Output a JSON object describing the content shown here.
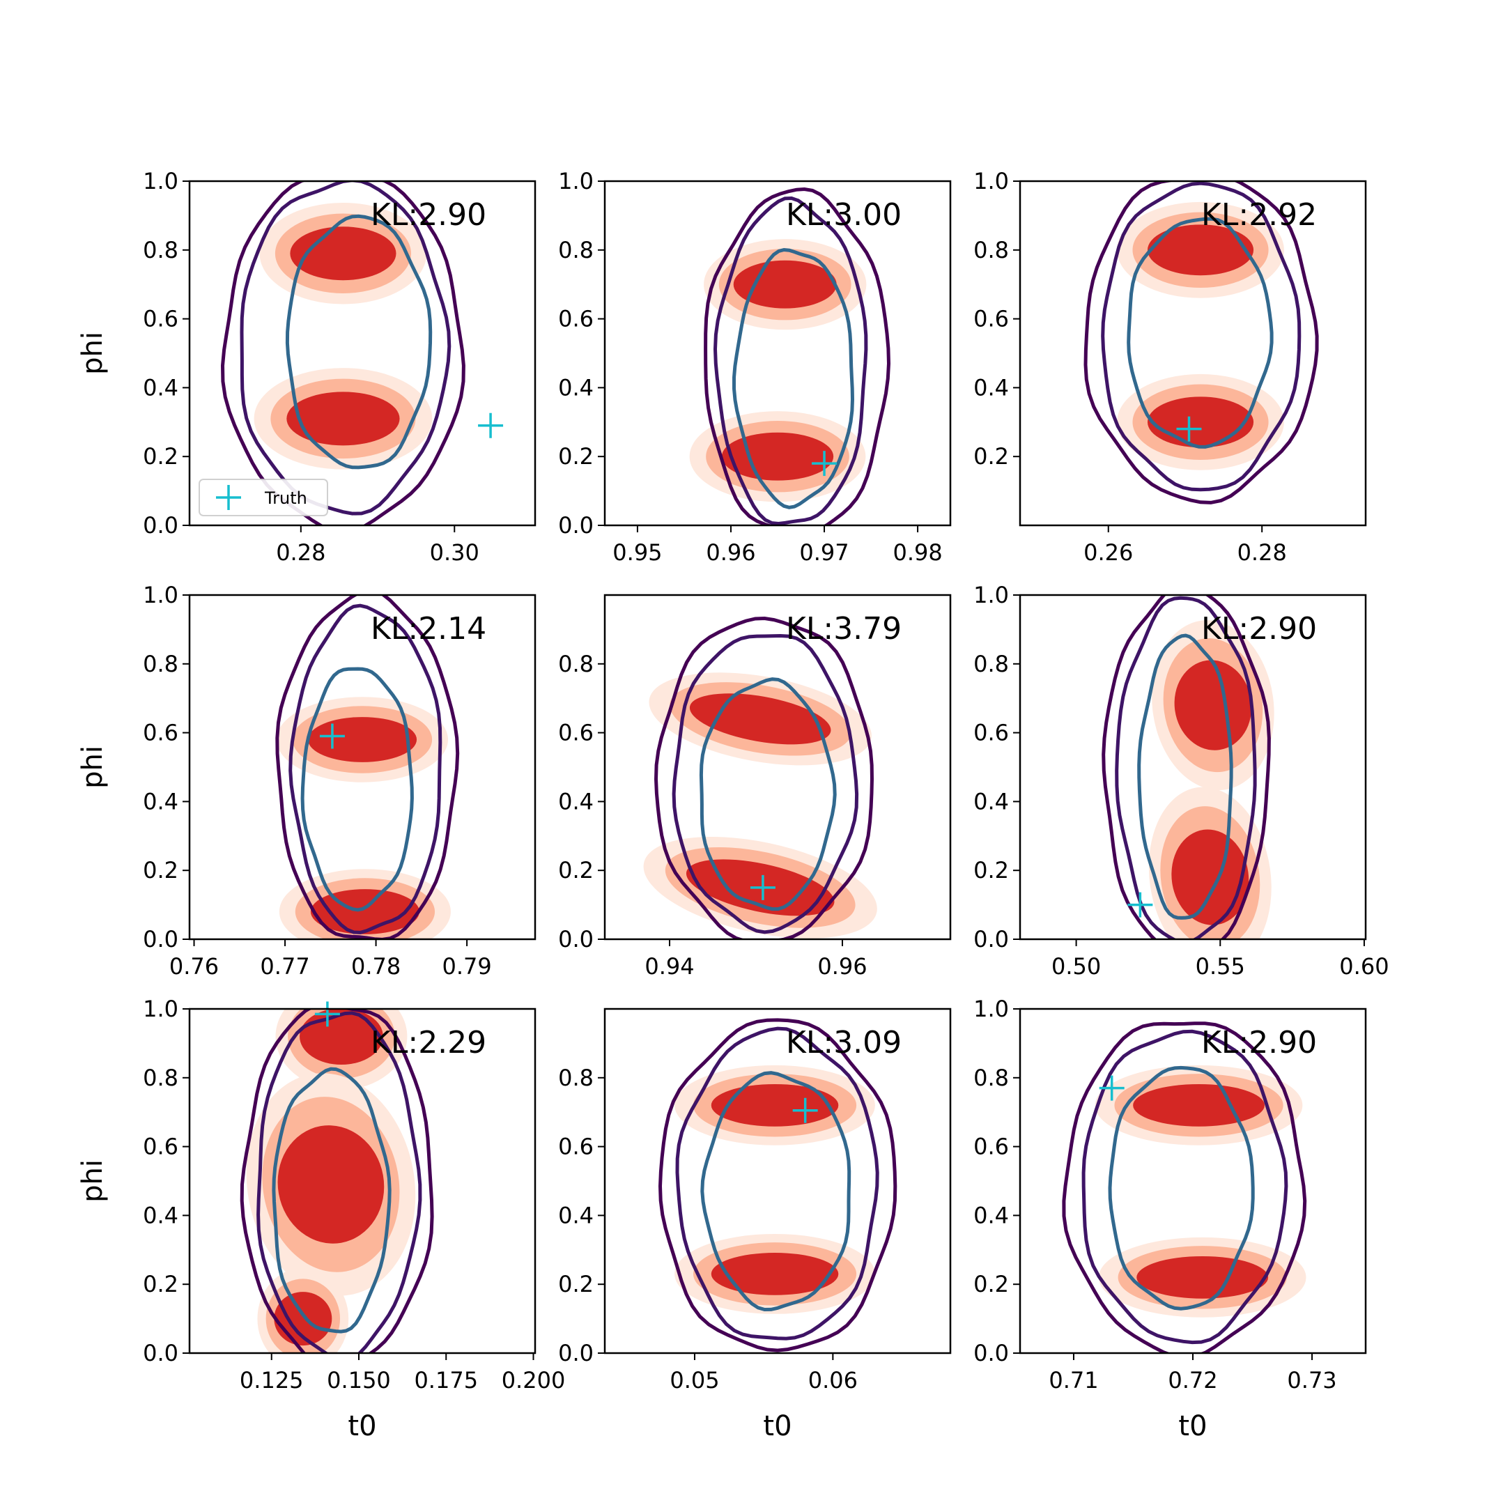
{
  "figure": {
    "legend": {
      "label": "Truth",
      "marker_color": "#17becf",
      "placement": "lower-left of first panel"
    },
    "colors": {
      "fill_outer": "#fee8dd",
      "fill_mid": "#fcb69a",
      "fill_inner": "#d42724",
      "contour_outer": "#440154",
      "contour_mid": "#3e1466",
      "contour_inner": "#31688e",
      "truth": "#17becf"
    }
  },
  "chart_data": [
    {
      "type": "contour",
      "kl_label": "KL:2.90",
      "xlabel": "",
      "ylabel": "phi",
      "xticks": [
        0.28,
        0.3
      ],
      "xtick_labels": [
        "0.28",
        "0.30"
      ],
      "xlim": [
        0.2655,
        0.3105
      ],
      "yticks": [
        0.0,
        0.2,
        0.4,
        0.6,
        0.8,
        1.0
      ],
      "ytick_labels": [
        "0.0",
        "0.2",
        "0.4",
        "0.6",
        "0.8",
        "1.0"
      ],
      "ylim": [
        0.0,
        1.0
      ],
      "truth": [
        0.3047,
        0.29
      ],
      "blobs": [
        {
          "cx": 0.2855,
          "cy": 0.79,
          "rx": 0.0075,
          "ry": 0.095
        },
        {
          "cx": 0.2855,
          "cy": 0.31,
          "rx": 0.008,
          "ry": 0.095
        }
      ],
      "contours": [
        {
          "cx": 0.2855,
          "cy": 0.51,
          "rx": 0.0155,
          "ry": 0.515,
          "level": "outer"
        },
        {
          "cx": 0.2855,
          "cy": 0.52,
          "rx": 0.0135,
          "ry": 0.48,
          "level": "mid"
        },
        {
          "cx": 0.2875,
          "cy": 0.53,
          "rx": 0.0093,
          "ry": 0.365,
          "level": "inner"
        }
      ],
      "show_legend": true
    },
    {
      "type": "contour",
      "kl_label": "KL:3.00",
      "xlabel": "",
      "ylabel": "",
      "xticks": [
        0.95,
        0.96,
        0.97,
        0.98
      ],
      "xtick_labels": [
        "0.95",
        "0.96",
        "0.97",
        "0.98"
      ],
      "xlim": [
        0.9465,
        0.9835
      ],
      "yticks": [
        0.0,
        0.2,
        0.4,
        0.6,
        0.8,
        1.0
      ],
      "ytick_labels": [
        "0.0",
        "0.2",
        "0.4",
        "0.6",
        "0.8",
        "1.0"
      ],
      "ylim": [
        0.0,
        1.0
      ],
      "truth": [
        0.97,
        0.18
      ],
      "blobs": [
        {
          "cx": 0.9658,
          "cy": 0.7,
          "rx": 0.006,
          "ry": 0.085
        },
        {
          "cx": 0.965,
          "cy": 0.2,
          "rx": 0.0065,
          "ry": 0.085
        }
      ],
      "contours": [
        {
          "cx": 0.967,
          "cy": 0.47,
          "rx": 0.0098,
          "ry": 0.5,
          "level": "outer"
        },
        {
          "cx": 0.9665,
          "cy": 0.47,
          "rx": 0.008,
          "ry": 0.47,
          "level": "mid"
        },
        {
          "cx": 0.9668,
          "cy": 0.43,
          "rx": 0.0063,
          "ry": 0.37,
          "level": "inner"
        }
      ],
      "show_legend": false
    },
    {
      "type": "contour",
      "kl_label": "KL:2.92",
      "xlabel": "",
      "ylabel": "",
      "xticks": [
        0.26,
        0.28
      ],
      "xtick_labels": [
        "0.26",
        "0.28"
      ],
      "xlim": [
        0.2485,
        0.2935
      ],
      "yticks": [
        0.2,
        0.4,
        0.6,
        0.8,
        1.0
      ],
      "ytick_labels": [
        "0.2",
        "0.4",
        "0.6",
        "0.8",
        "1.0"
      ],
      "ylim": [
        0.0,
        1.0
      ],
      "truth": [
        0.2705,
        0.28
      ],
      "blobs": [
        {
          "cx": 0.272,
          "cy": 0.8,
          "rx": 0.0075,
          "ry": 0.09
        },
        {
          "cx": 0.272,
          "cy": 0.3,
          "rx": 0.0075,
          "ry": 0.09
        }
      ],
      "contours": [
        {
          "cx": 0.272,
          "cy": 0.55,
          "rx": 0.015,
          "ry": 0.475,
          "level": "outer"
        },
        {
          "cx": 0.272,
          "cy": 0.55,
          "rx": 0.0128,
          "ry": 0.445,
          "level": "mid"
        },
        {
          "cx": 0.2718,
          "cy": 0.56,
          "rx": 0.0093,
          "ry": 0.33,
          "level": "inner"
        }
      ],
      "show_legend": false
    },
    {
      "type": "contour",
      "kl_label": "KL:2.14",
      "xlabel": "",
      "ylabel": "phi",
      "xticks": [
        0.76,
        0.77,
        0.78,
        0.79
      ],
      "xtick_labels": [
        "0.76",
        "0.77",
        "0.78",
        "0.79"
      ],
      "xlim": [
        0.7595,
        0.7975
      ],
      "yticks": [
        0.0,
        0.2,
        0.4,
        0.6,
        0.8,
        1.0
      ],
      "ytick_labels": [
        "0.0",
        "0.2",
        "0.4",
        "0.6",
        "0.8",
        "1.0"
      ],
      "ylim": [
        0.0,
        1.0
      ],
      "truth": [
        0.7752,
        0.59
      ],
      "blobs": [
        {
          "cx": 0.7785,
          "cy": 0.58,
          "rx": 0.0065,
          "ry": 0.08
        },
        {
          "cx": 0.7788,
          "cy": 0.08,
          "rx": 0.0065,
          "ry": 0.08
        }
      ],
      "contours": [
        {
          "cx": 0.779,
          "cy": 0.495,
          "rx": 0.0098,
          "ry": 0.505,
          "level": "outer"
        },
        {
          "cx": 0.779,
          "cy": 0.49,
          "rx": 0.0082,
          "ry": 0.47,
          "level": "mid"
        },
        {
          "cx": 0.778,
          "cy": 0.44,
          "rx": 0.006,
          "ry": 0.35,
          "level": "inner"
        }
      ],
      "show_legend": false
    },
    {
      "type": "contour",
      "kl_label": "KL:3.79",
      "xlabel": "",
      "ylabel": "",
      "xticks": [
        0.94,
        0.96
      ],
      "xtick_labels": [
        "0.94",
        "0.96"
      ],
      "xlim": [
        0.9325,
        0.9725
      ],
      "yticks": [
        0.0,
        0.2,
        0.4,
        0.6,
        0.8
      ],
      "ytick_labels": [
        "0.0",
        "0.2",
        "0.4",
        "0.6",
        "0.8"
      ],
      "ylim": [
        0.0,
        1.0
      ],
      "truth": [
        0.9508,
        0.15
      ],
      "blobs": [
        {
          "cx": 0.9505,
          "cy": 0.64,
          "rx": 0.009,
          "ry": 0.08,
          "tilt": 10
        },
        {
          "cx": 0.9505,
          "cy": 0.15,
          "rx": 0.0095,
          "ry": 0.085,
          "tilt": 12
        }
      ],
      "contours": [
        {
          "cx": 0.951,
          "cy": 0.465,
          "rx": 0.0125,
          "ry": 0.47,
          "level": "outer"
        },
        {
          "cx": 0.951,
          "cy": 0.46,
          "rx": 0.0105,
          "ry": 0.43,
          "level": "mid"
        },
        {
          "cx": 0.9512,
          "cy": 0.42,
          "rx": 0.0077,
          "ry": 0.33,
          "level": "inner"
        }
      ],
      "show_legend": false
    },
    {
      "type": "contour",
      "kl_label": "KL:2.90",
      "xlabel": "",
      "ylabel": "",
      "xticks": [
        0.5,
        0.55,
        0.6
      ],
      "xtick_labels": [
        "0.50",
        "0.55",
        "0.60"
      ],
      "xlim": [
        0.4805,
        0.6005
      ],
      "yticks": [
        0.0,
        0.2,
        0.4,
        0.6,
        0.8,
        1.0
      ],
      "ytick_labels": [
        "0.0",
        "0.2",
        "0.4",
        "0.6",
        "0.8",
        "1.0"
      ],
      "ylim": [
        0.0,
        1.0
      ],
      "truth": [
        0.5222,
        0.1
      ],
      "blobs": [
        {
          "cx": 0.5475,
          "cy": 0.68,
          "rx": 0.0145,
          "ry": 0.16,
          "tilt": -8
        },
        {
          "cx": 0.5465,
          "cy": 0.18,
          "rx": 0.0145,
          "ry": 0.17,
          "tilt": -8
        }
      ],
      "contours": [
        {
          "cx": 0.5383,
          "cy": 0.49,
          "rx": 0.0285,
          "ry": 0.53,
          "level": "outer"
        },
        {
          "cx": 0.5383,
          "cy": 0.49,
          "rx": 0.024,
          "ry": 0.5,
          "level": "mid"
        },
        {
          "cx": 0.538,
          "cy": 0.47,
          "rx": 0.016,
          "ry": 0.41,
          "level": "inner"
        }
      ],
      "show_legend": false
    },
    {
      "type": "contour",
      "kl_label": "KL:2.29",
      "xlabel": "t0",
      "ylabel": "phi",
      "xticks": [
        0.125,
        0.15,
        0.175,
        0.2
      ],
      "xtick_labels": [
        "0.125",
        "0.150",
        "0.175",
        "0.200"
      ],
      "xlim": [
        0.1015,
        0.2005
      ],
      "yticks": [
        0.0,
        0.2,
        0.4,
        0.6,
        0.8,
        1.0
      ],
      "ytick_labels": [
        "0.0",
        "0.2",
        "0.4",
        "0.6",
        "0.8",
        "1.0"
      ],
      "ylim": [
        0.0,
        1.0
      ],
      "truth": [
        0.141,
        0.985
      ],
      "blobs": [
        {
          "cx": 0.145,
          "cy": 0.92,
          "rx": 0.013,
          "ry": 0.1
        },
        {
          "cx": 0.142,
          "cy": 0.49,
          "rx": 0.0165,
          "ry": 0.21,
          "tilt": -10
        },
        {
          "cx": 0.134,
          "cy": 0.1,
          "rx": 0.009,
          "ry": 0.095
        }
      ],
      "contours": [
        {
          "cx": 0.144,
          "cy": 0.49,
          "rx": 0.027,
          "ry": 0.53,
          "level": "outer"
        },
        {
          "cx": 0.144,
          "cy": 0.49,
          "rx": 0.023,
          "ry": 0.5,
          "level": "mid"
        },
        {
          "cx": 0.142,
          "cy": 0.44,
          "rx": 0.0165,
          "ry": 0.38,
          "level": "inner"
        }
      ],
      "show_legend": false
    },
    {
      "type": "contour",
      "kl_label": "KL:3.09",
      "xlabel": "t0",
      "ylabel": "",
      "xticks": [
        0.05,
        0.06
      ],
      "xtick_labels": [
        "0.05",
        "0.06"
      ],
      "xlim": [
        0.0435,
        0.0685
      ],
      "yticks": [
        0.0,
        0.2,
        0.4,
        0.6,
        0.8
      ],
      "ytick_labels": [
        "0.0",
        "0.2",
        "0.4",
        "0.6",
        "0.8"
      ],
      "ylim": [
        0.0,
        1.0
      ],
      "truth": [
        0.058,
        0.705
      ],
      "blobs": [
        {
          "cx": 0.0558,
          "cy": 0.72,
          "rx": 0.005,
          "ry": 0.075
        },
        {
          "cx": 0.0558,
          "cy": 0.23,
          "rx": 0.005,
          "ry": 0.075
        }
      ],
      "contours": [
        {
          "cx": 0.056,
          "cy": 0.485,
          "rx": 0.0085,
          "ry": 0.48,
          "level": "outer"
        },
        {
          "cx": 0.056,
          "cy": 0.485,
          "rx": 0.0072,
          "ry": 0.45,
          "level": "mid"
        },
        {
          "cx": 0.056,
          "cy": 0.47,
          "rx": 0.0053,
          "ry": 0.34,
          "level": "inner"
        }
      ],
      "show_legend": false
    },
    {
      "type": "contour",
      "kl_label": "KL:2.90",
      "xlabel": "t0",
      "ylabel": "",
      "xticks": [
        0.71,
        0.72,
        0.73
      ],
      "xtick_labels": [
        "0.71",
        "0.72",
        "0.73"
      ],
      "xlim": [
        0.7055,
        0.7345
      ],
      "yticks": [
        0.0,
        0.2,
        0.4,
        0.6,
        0.8,
        1.0
      ],
      "ytick_labels": [
        "0.0",
        "0.2",
        "0.4",
        "0.6",
        "0.8",
        "1.0"
      ],
      "ylim": [
        0.0,
        1.0
      ],
      "truth": [
        0.7132,
        0.77
      ],
      "blobs": [
        {
          "cx": 0.7205,
          "cy": 0.72,
          "rx": 0.006,
          "ry": 0.075
        },
        {
          "cx": 0.7208,
          "cy": 0.22,
          "rx": 0.006,
          "ry": 0.075
        }
      ],
      "contours": [
        {
          "cx": 0.7193,
          "cy": 0.485,
          "rx": 0.01,
          "ry": 0.485,
          "level": "outer"
        },
        {
          "cx": 0.7192,
          "cy": 0.485,
          "rx": 0.0085,
          "ry": 0.45,
          "level": "mid"
        },
        {
          "cx": 0.719,
          "cy": 0.48,
          "rx": 0.006,
          "ry": 0.35,
          "level": "inner"
        }
      ],
      "show_legend": false
    }
  ]
}
